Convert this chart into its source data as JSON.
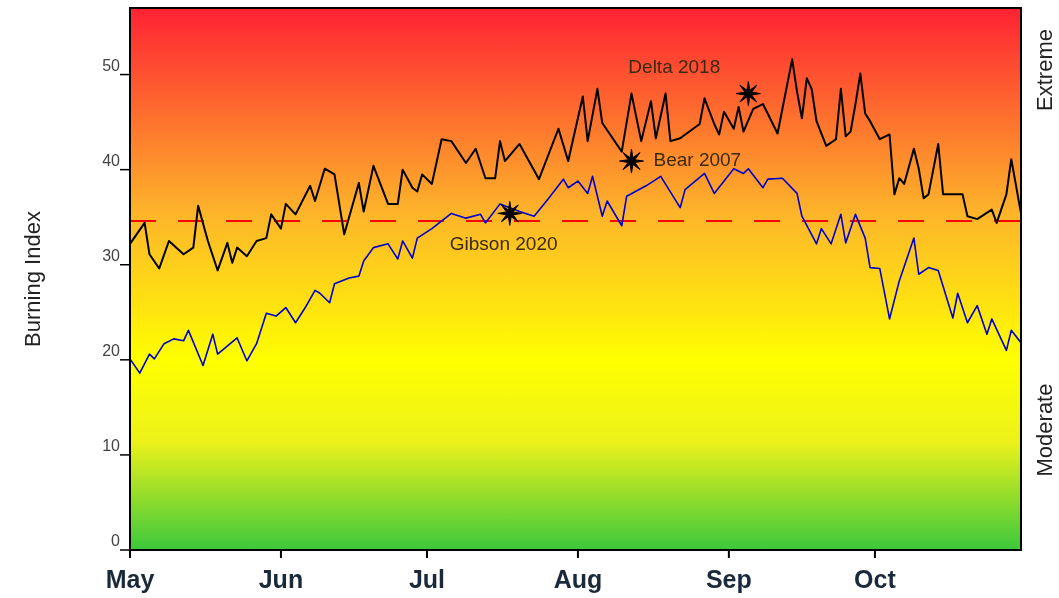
{
  "chart_data": {
    "type": "line",
    "ylabel": "Burning Index",
    "xlim": [
      "--05-01",
      "--10-31"
    ],
    "ylim": [
      0,
      57
    ],
    "xticks": [
      {
        "value": "--05-01",
        "label": "May"
      },
      {
        "value": "--06-01",
        "label": "Jun"
      },
      {
        "value": "--07-01",
        "label": "Jul"
      },
      {
        "value": "--08-01",
        "label": "Aug"
      },
      {
        "value": "--09-01",
        "label": "Sep"
      },
      {
        "value": "--10-01",
        "label": "Oct"
      }
    ],
    "yticks": [
      0,
      10,
      20,
      30,
      40,
      50
    ],
    "grid": false,
    "line_style": "solid",
    "marker": "none",
    "series": [
      {
        "color": "#000000",
        "x": [
          "--05-01",
          "--05-04",
          "--05-05",
          "--05-07",
          "--05-09",
          "--05-12",
          "--05-14",
          "--05-15",
          "--05-17",
          "--05-19",
          "--05-21",
          "--05-22",
          "--05-23",
          "--05-25",
          "--05-27",
          "--05-29",
          "--05-30",
          "--06-01",
          "--06-02",
          "--06-04",
          "--06-07",
          "--06-08",
          "--06-10",
          "--06-12",
          "--06-14",
          "--06-17",
          "--06-18",
          "--06-20",
          "--06-23",
          "--06-25",
          "--06-26",
          "--06-28",
          "--06-29",
          "--06-30",
          "--07-02",
          "--07-04",
          "--07-06",
          "--07-09",
          "--07-11",
          "--07-13",
          "--07-15",
          "--07-16",
          "--07-17",
          "--07-20",
          "--07-24",
          "--07-28",
          "--07-30",
          "--08-02",
          "--08-03",
          "--08-05",
          "--08-06",
          "--08-10",
          "--08-12",
          "--08-14",
          "--08-16",
          "--08-17",
          "--08-19",
          "--08-20",
          "--08-22",
          "--08-26",
          "--08-27",
          "--08-29",
          "--08-30",
          "--08-31",
          "--09-02",
          "--09-03",
          "--09-04",
          "--09-06",
          "--09-08",
          "--09-11",
          "--09-12",
          "--09-14",
          "--09-15",
          "--09-16",
          "--09-17",
          "--09-18",
          "--09-19",
          "--09-21",
          "--09-23",
          "--09-24",
          "--09-25",
          "--09-26",
          "--09-27",
          "--09-28",
          "--09-29",
          "--09-30",
          "--10-02",
          "--10-04",
          "--10-05",
          "--10-06",
          "--10-07",
          "--10-09",
          "--10-10",
          "--10-11",
          "--10-12",
          "--10-14",
          "--10-15",
          "--10-19",
          "--10-20",
          "--10-22",
          "--10-25",
          "--10-26",
          "--10-28",
          "--10-29",
          "--10-31"
        ],
        "values": [
          32.2,
          34.4,
          31.1,
          29.6,
          32.5,
          31.1,
          31.8,
          36.2,
          32.5,
          29.4,
          32.3,
          30.2,
          31.8,
          30.9,
          32.5,
          32.8,
          35.3,
          33.8,
          36.4,
          35.3,
          38.3,
          36.7,
          40.1,
          39.5,
          33.2,
          38.6,
          35.6,
          40.4,
          36.4,
          36.4,
          40.0,
          38.1,
          37.7,
          39.5,
          38.5,
          43.2,
          43.0,
          40.7,
          42.2,
          39.1,
          39.1,
          43.0,
          40.9,
          42.7,
          39.0,
          44.3,
          40.9,
          47.7,
          43.0,
          48.5,
          44.9,
          41.9,
          48.0,
          43.0,
          47.2,
          43.3,
          48.0,
          43.0,
          43.3,
          44.8,
          47.5,
          44.8,
          43.7,
          46.1,
          44.3,
          46.6,
          44.0,
          46.4,
          46.9,
          43.8,
          46.4,
          51.6,
          48.2,
          45.4,
          49.6,
          48.5,
          45.1,
          42.5,
          43.2,
          48.5,
          43.5,
          44.0,
          46.9,
          50.1,
          45.9,
          45.1,
          43.2,
          43.7,
          37.4,
          39.1,
          38.5,
          42.2,
          40.1,
          37.0,
          37.4,
          42.7,
          37.4,
          37.4,
          35.1,
          34.8,
          35.8,
          34.4,
          37.4,
          41.1,
          35.4
        ]
      },
      {
        "color": "#0000cc",
        "x": [
          "--05-01",
          "--05-03",
          "--05-05",
          "--05-06",
          "--05-08",
          "--05-10",
          "--05-12",
          "--05-13",
          "--05-16",
          "--05-18",
          "--05-19",
          "--05-23",
          "--05-25",
          "--05-27",
          "--05-29",
          "--05-31",
          "--06-02",
          "--06-04",
          "--06-06",
          "--06-08",
          "--06-09",
          "--06-11",
          "--06-12",
          "--06-15",
          "--06-17",
          "--06-18",
          "--06-20",
          "--06-23",
          "--06-25",
          "--06-26",
          "--06-28",
          "--06-29",
          "--07-02",
          "--07-06",
          "--07-09",
          "--07-12",
          "--07-13",
          "--07-16",
          "--07-20",
          "--07-23",
          "--07-26",
          "--07-29",
          "--07-30",
          "--08-01",
          "--08-03",
          "--08-04",
          "--08-06",
          "--08-07",
          "--08-10",
          "--08-11",
          "--08-15",
          "--08-18",
          "--08-22",
          "--08-23",
          "--08-27",
          "--08-29",
          "--09-02",
          "--09-04",
          "--09-05",
          "--09-08",
          "--09-09",
          "--09-12",
          "--09-15",
          "--09-16",
          "--09-19",
          "--09-20",
          "--09-22",
          "--09-24",
          "--09-25",
          "--09-27",
          "--09-29",
          "--09-30",
          "--10-02",
          "--10-04",
          "--10-06",
          "--10-09",
          "--10-10",
          "--10-12",
          "--10-14",
          "--10-17",
          "--10-18",
          "--10-20",
          "--10-22",
          "--10-24",
          "--10-25",
          "--10-28",
          "--10-29",
          "--10-31"
        ],
        "values": [
          20.1,
          18.6,
          20.6,
          20.1,
          21.7,
          22.2,
          22.0,
          23.1,
          19.4,
          22.7,
          20.6,
          22.3,
          19.9,
          21.7,
          24.9,
          24.6,
          25.5,
          23.9,
          25.5,
          27.3,
          27.0,
          26.0,
          28.0,
          28.6,
          28.8,
          30.4,
          31.8,
          32.2,
          30.6,
          32.5,
          30.7,
          32.8,
          33.8,
          35.4,
          34.9,
          35.3,
          34.4,
          36.4,
          35.6,
          35.1,
          37.0,
          39.0,
          38.1,
          38.8,
          37.5,
          39.3,
          35.1,
          36.7,
          34.1,
          37.2,
          38.3,
          39.3,
          36.0,
          37.9,
          39.6,
          37.5,
          40.1,
          39.6,
          40.1,
          38.1,
          39.0,
          39.1,
          37.5,
          35.1,
          32.2,
          33.8,
          32.2,
          35.3,
          32.3,
          35.3,
          32.8,
          29.7,
          29.6,
          24.3,
          28.3,
          32.8,
          29.0,
          29.7,
          29.4,
          24.4,
          27.0,
          23.9,
          25.7,
          22.7,
          24.3,
          21.0,
          23.1,
          21.8
        ]
      },
      {
        "type": "scatter",
        "marker": "star",
        "color": "#000000",
        "x": [
          "--07-18",
          "--08-12",
          "--09-05"
        ],
        "values": [
          35.4,
          40.9,
          48.0
        ]
      }
    ],
    "ref_lines": [
      {
        "axis": "y",
        "value": 34.6,
        "color": "#ff0000",
        "line_style": "dashed"
      }
    ],
    "annotations": [
      {
        "text": "Gibson 2020",
        "x": "--07-18",
        "y": 35.4
      },
      {
        "text": "Bear 2007",
        "x": "--08-12",
        "y": 40.9
      },
      {
        "text": "Delta 2018",
        "x": "--09-05",
        "y": 48.0
      },
      "Extreme",
      "Moderate"
    ]
  }
}
